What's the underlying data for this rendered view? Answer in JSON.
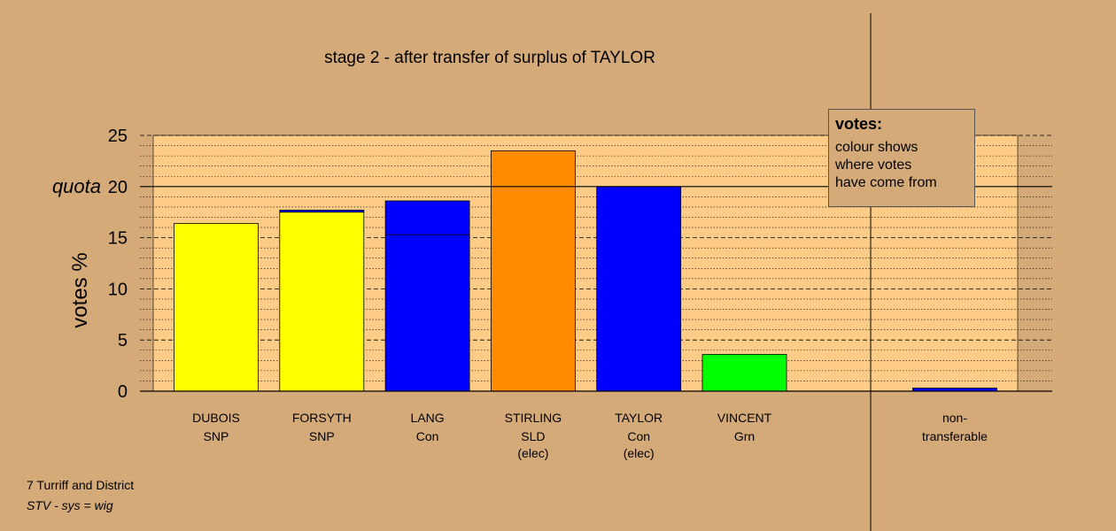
{
  "chart_data": {
    "type": "bar",
    "title": "stage 2 - after transfer of surplus of TAYLOR",
    "ylabel": "votes %",
    "ylim": [
      0,
      25
    ],
    "yticks": [
      0,
      5,
      10,
      15,
      20,
      25
    ],
    "quota": {
      "label": "quota",
      "value": 20
    },
    "categories": [
      {
        "name": "DUBOIS",
        "party": "SNP",
        "status": ""
      },
      {
        "name": "FORSYTH",
        "party": "SNP",
        "status": ""
      },
      {
        "name": "LANG",
        "party": "Con",
        "status": ""
      },
      {
        "name": "STIRLING",
        "party": "SLD",
        "status": "(elec)"
      },
      {
        "name": "TAYLOR",
        "party": "Con",
        "status": "(elec)"
      },
      {
        "name": "VINCENT",
        "party": "Grn",
        "status": ""
      },
      {
        "name": "non-",
        "party": "transferable",
        "status": ""
      }
    ],
    "bars": [
      {
        "segments": [
          {
            "value": 16.4,
            "color": "#ffff00"
          }
        ]
      },
      {
        "segments": [
          {
            "value": 17.5,
            "color": "#ffff00"
          },
          {
            "value": 0.2,
            "color": "#0000ff"
          }
        ]
      },
      {
        "segments": [
          {
            "value": 15.3,
            "color": "#0000ff"
          },
          {
            "value": 3.3,
            "color": "#0000ff"
          }
        ]
      },
      {
        "segments": [
          {
            "value": 23.5,
            "color": "#ff8c00"
          }
        ]
      },
      {
        "segments": [
          {
            "value": 20.0,
            "color": "#0000ff"
          }
        ]
      },
      {
        "segments": [
          {
            "value": 3.6,
            "color": "#00ff00"
          }
        ]
      },
      {
        "segments": [
          {
            "value": 0.3,
            "color": "#0000ff"
          }
        ]
      }
    ],
    "colors": {
      "plot_background": "#ffcc88",
      "page_background": "#d4aa78"
    },
    "legend": {
      "title": "votes:",
      "lines": [
        "colour shows",
        "where votes",
        "have come from"
      ],
      "placement": "top-right"
    },
    "grid": true
  },
  "footer": {
    "line1": "7 Turriff and District",
    "line2": "STV - sys = wig"
  }
}
